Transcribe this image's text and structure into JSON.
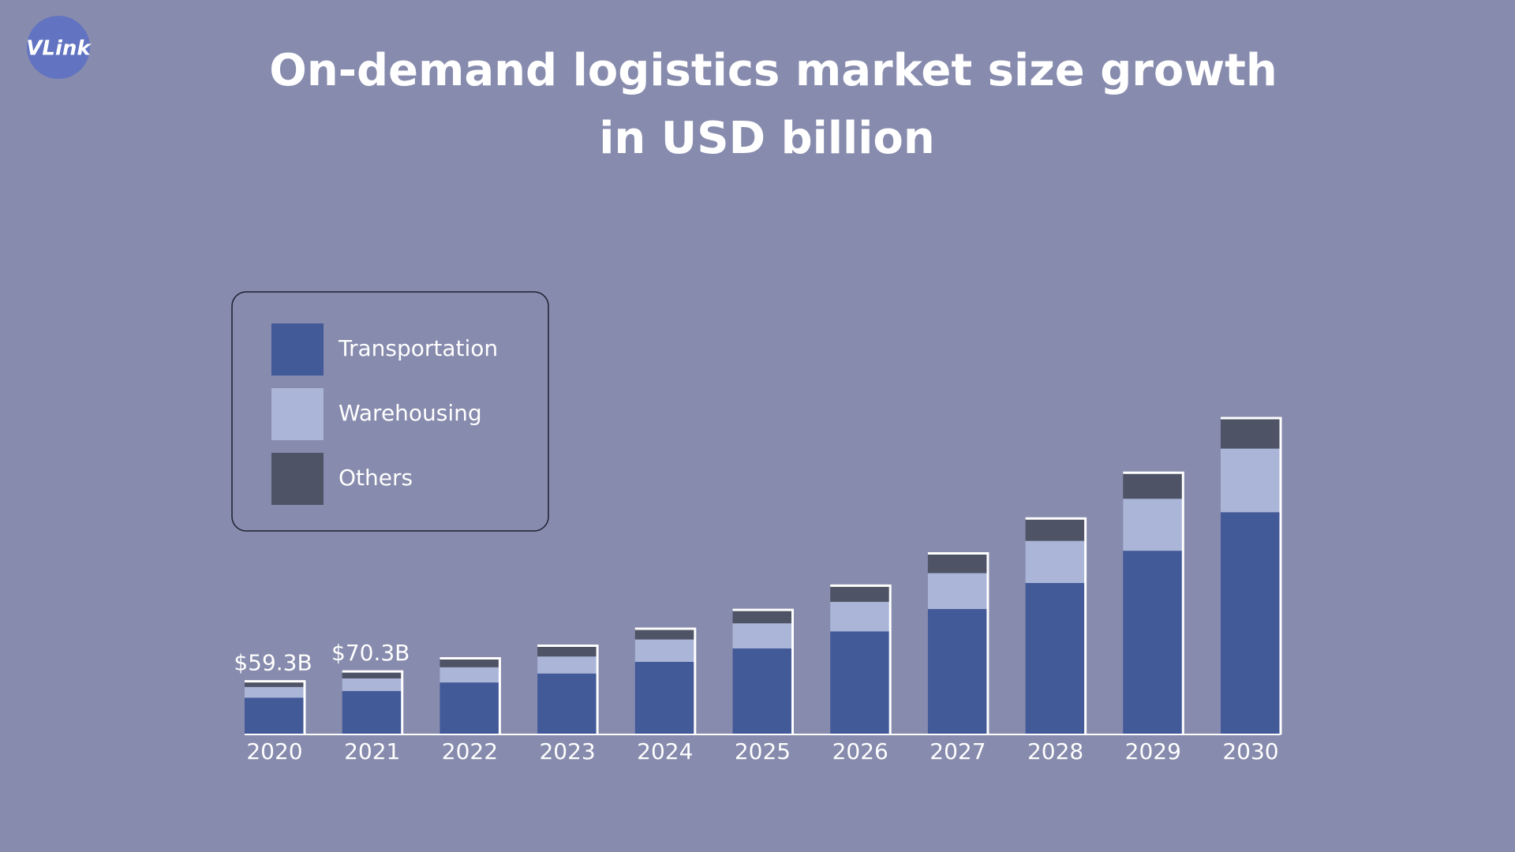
{
  "logo": "VLink",
  "chart_data": {
    "type": "stacked-bar",
    "title": [
      "On-demand logistics market size growth",
      "in USD billion"
    ],
    "categories": [
      "2020",
      "2021",
      "2022",
      "2023",
      "2024",
      "2025",
      "2026",
      "2027",
      "2028",
      "2029",
      "2030"
    ],
    "series": [
      {
        "name": "Transportation",
        "color": "#435a99",
        "values": [
          41,
          48.5,
          58,
          68,
          81,
          96,
          115,
          140,
          169,
          205,
          248
        ]
      },
      {
        "name": "Warehousing",
        "color": "#aab5d8",
        "values": [
          12,
          14,
          17,
          19,
          25,
          28,
          33,
          40,
          47,
          58,
          71
        ]
      },
      {
        "name": "Others",
        "color": "#4e5365",
        "values": [
          6.3,
          7.8,
          10,
          12,
          12,
          15,
          18,
          22,
          25,
          29,
          34
        ]
      }
    ],
    "annotations": [
      "$59.3B",
      "$70.3B"
    ],
    "legend": "top-left"
  }
}
